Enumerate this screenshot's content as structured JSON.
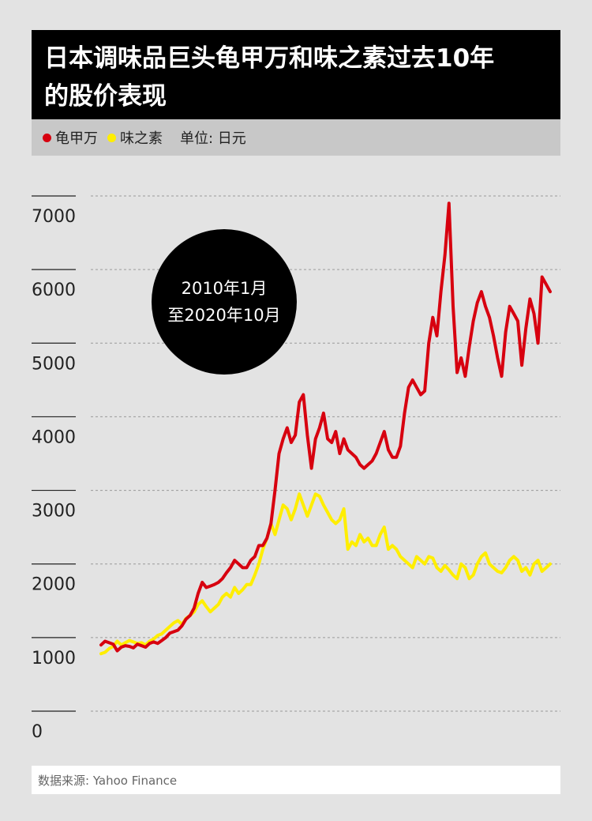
{
  "title_line1": "日本调味品巨头龟甲万和味之素过去10年",
  "title_line2": "的股价表现",
  "legend": {
    "series1": "龟甲万",
    "series2": "味之素",
    "unit": "单位: 日元"
  },
  "badge": {
    "line1": "2010年1月",
    "line2": "至2020年10月"
  },
  "source": "数据来源: Yahoo Finance",
  "colors": {
    "kikkoman": "#d7000f",
    "ajinomoto": "#ffee00"
  },
  "chart_data": {
    "type": "line",
    "ylim": [
      0,
      7000
    ],
    "yticks": [
      "0",
      "1000",
      "2000",
      "3000",
      "4000",
      "5000",
      "6000",
      "7000"
    ],
    "x_start": "2010-01",
    "x_end": "2020-10",
    "series": [
      {
        "name": "龟甲万",
        "values": [
          900,
          950,
          930,
          910,
          820,
          870,
          890,
          880,
          860,
          910,
          890,
          870,
          920,
          940,
          920,
          960,
          1000,
          1060,
          1080,
          1100,
          1160,
          1250,
          1300,
          1400,
          1600,
          1750,
          1680,
          1700,
          1720,
          1750,
          1800,
          1880,
          1950,
          2050,
          2000,
          1950,
          1950,
          2050,
          2100,
          2250,
          2250,
          2350,
          2550,
          3000,
          3500,
          3700,
          3850,
          3650,
          3750,
          4200,
          4300,
          3750,
          3300,
          3700,
          3850,
          4050,
          3700,
          3650,
          3800,
          3500,
          3700,
          3550,
          3500,
          3450,
          3350,
          3300,
          3350,
          3400,
          3500,
          3650,
          3800,
          3550,
          3450,
          3450,
          3600,
          4050,
          4400,
          4500,
          4400,
          4300,
          4350,
          5000,
          5350,
          5100,
          5700,
          6200,
          6900,
          5500,
          4600,
          4800,
          4550,
          4950,
          5300,
          5550,
          5700,
          5500,
          5350,
          5100,
          4800,
          4550,
          5150,
          5500,
          5400,
          5300,
          4700,
          5200,
          5600,
          5400,
          5000,
          5900,
          5800,
          5700
        ]
      },
      {
        "name": "味之素",
        "values": [
          780,
          800,
          850,
          880,
          950,
          900,
          930,
          960,
          940,
          920,
          930,
          900,
          950,
          980,
          1030,
          1050,
          1100,
          1150,
          1200,
          1230,
          1180,
          1260,
          1300,
          1350,
          1450,
          1500,
          1420,
          1350,
          1400,
          1450,
          1550,
          1600,
          1550,
          1680,
          1600,
          1650,
          1720,
          1720,
          1850,
          2000,
          2200,
          2350,
          2550,
          2400,
          2600,
          2800,
          2750,
          2600,
          2750,
          2950,
          2800,
          2650,
          2800,
          2950,
          2920,
          2800,
          2700,
          2600,
          2550,
          2600,
          2750,
          2200,
          2300,
          2250,
          2400,
          2300,
          2350,
          2250,
          2250,
          2400,
          2500,
          2200,
          2250,
          2200,
          2100,
          2050,
          2000,
          1950,
          2100,
          2050,
          2000,
          2100,
          2080,
          1950,
          1900,
          1980,
          1920,
          1850,
          1800,
          2000,
          1950,
          1800,
          1850,
          2000,
          2100,
          2150,
          2000,
          1950,
          1900,
          1880,
          1950,
          2050,
          2100,
          2050,
          1900,
          1950,
          1850,
          2000,
          2050,
          1900,
          1950,
          2000
        ]
      }
    ]
  }
}
